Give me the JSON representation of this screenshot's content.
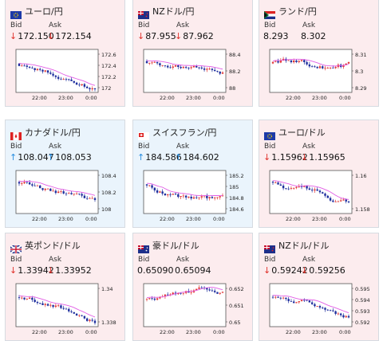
{
  "colors": {
    "panel_red": "#fcecee",
    "panel_blue": "#eaf4fc",
    "down_arrow": "#e0302a",
    "up_arrow": "#2a8fe0",
    "candle_up": "#e23a3a",
    "candle_down": "#1f2f9e",
    "moving_avg": "#e25de5"
  },
  "labels": {
    "bid": "Bid",
    "ask": "Ask"
  },
  "cards": [
    {
      "pair": "ユーロ/円",
      "flag_icon": "eu-flag-icon",
      "theme": "red",
      "bid": "172.150",
      "ask": "172.154",
      "bid_dir": "down",
      "ask_dir": "down",
      "y_ticks": [
        "172.6",
        "172.4",
        "172.2",
        "172"
      ],
      "x_ticks": [
        "22:00",
        "23:00",
        "0:00"
      ]
    },
    {
      "pair": "NZドル/円",
      "flag_icon": "nz-flag-icon",
      "theme": "red",
      "bid": "87.955",
      "ask": "87.962",
      "bid_dir": "down",
      "ask_dir": "down",
      "y_ticks": [
        "88.4",
        "88.2",
        "88"
      ],
      "x_ticks": [
        "22:00",
        "23:00",
        "0:00"
      ]
    },
    {
      "pair": "ランド/円",
      "flag_icon": "za-flag-icon",
      "theme": "red",
      "bid": "8.293",
      "ask": "8.302",
      "bid_dir": "none",
      "ask_dir": "none",
      "y_ticks": [
        "8.31",
        "8.3",
        "8.29"
      ],
      "x_ticks": [
        "22:00",
        "23:00",
        "0:00"
      ]
    },
    {
      "pair": "カナダドル/円",
      "flag_icon": "ca-flag-icon",
      "theme": "blue",
      "bid": "108.047",
      "ask": "108.053",
      "bid_dir": "up",
      "ask_dir": "up",
      "y_ticks": [
        "108.4",
        "108.2",
        "108"
      ],
      "x_ticks": [
        "22:00",
        "23:00",
        "0:00"
      ]
    },
    {
      "pair": "スイスフラン/円",
      "flag_icon": "ch-flag-icon",
      "theme": "blue",
      "bid": "184.586",
      "ask": "184.602",
      "bid_dir": "up",
      "ask_dir": "up",
      "y_ticks": [
        "185.2",
        "185",
        "184.8",
        "184.6"
      ],
      "x_ticks": [
        "22:00",
        "23:00",
        "0:00"
      ]
    },
    {
      "pair": "ユーロ/ドル",
      "flag_icon": "eu-flag-icon",
      "theme": "red",
      "bid": "1.15962",
      "ask": "1.15965",
      "bid_dir": "down",
      "ask_dir": "down",
      "y_ticks": [
        "1.16",
        "1.158"
      ],
      "x_ticks": [
        "22:00",
        "23:00",
        "0:00"
      ]
    },
    {
      "pair": "英ポンド/ドル",
      "flag_icon": "uk-flag-icon",
      "theme": "red",
      "bid": "1.33942",
      "ask": "1.33952",
      "bid_dir": "down",
      "ask_dir": "down",
      "y_ticks": [
        "1.34",
        "1.338"
      ],
      "x_ticks": [
        "22:00",
        "23:00",
        "0:00"
      ]
    },
    {
      "pair": "豪ドル/ドル",
      "flag_icon": "au-flag-icon",
      "theme": "red",
      "bid": "0.65090",
      "ask": "0.65094",
      "bid_dir": "none",
      "ask_dir": "none",
      "y_ticks": [
        "0.652",
        "0.651",
        "0.65"
      ],
      "x_ticks": [
        "22:00",
        "23:00",
        "0:00"
      ]
    },
    {
      "pair": "NZドル/ドル",
      "flag_icon": "nz-flag-icon",
      "theme": "red",
      "bid": "0.59242",
      "ask": "0.59256",
      "bid_dir": "down",
      "ask_dir": "down",
      "y_ticks": [
        "0.595",
        "0.594",
        "0.593",
        "0.592"
      ],
      "x_ticks": [
        "22:00",
        "23:00",
        "0:00"
      ]
    }
  ]
}
